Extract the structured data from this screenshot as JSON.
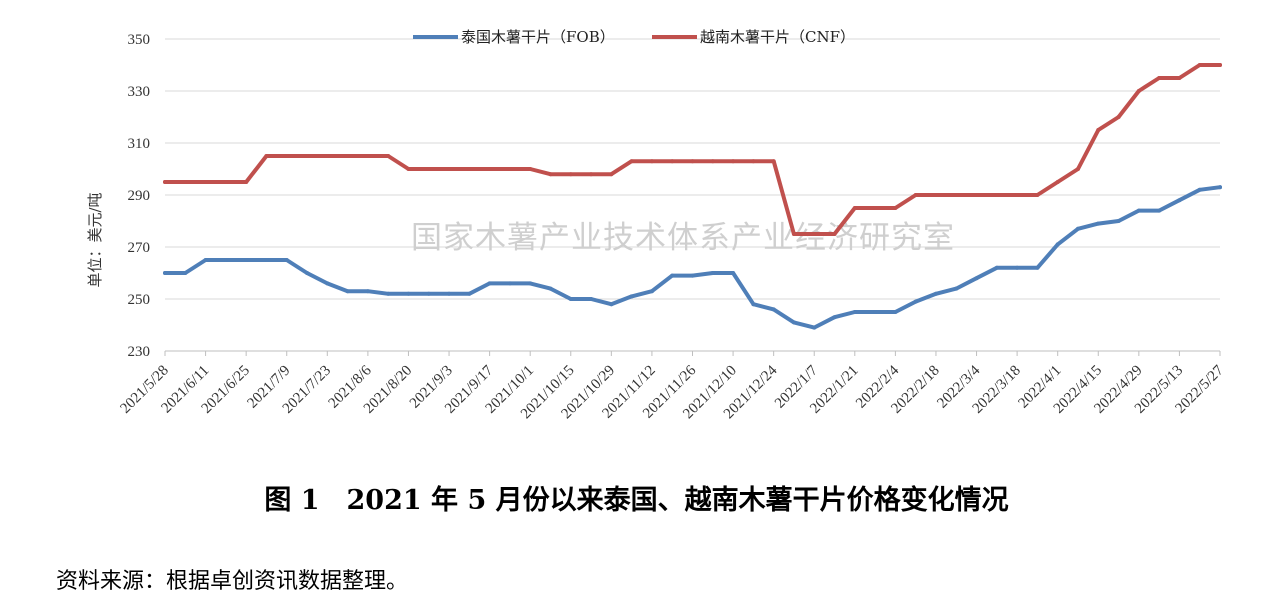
{
  "chart_data": {
    "type": "line",
    "ylabel": "单位：美元/吨",
    "ylim": [
      230,
      350
    ],
    "yticks": [
      230,
      250,
      270,
      290,
      310,
      330,
      350
    ],
    "grid": "horizontal",
    "legend_position": "top",
    "x": [
      "2021/5/28",
      "2021/6/4",
      "2021/6/11",
      "2021/6/18",
      "2021/6/25",
      "2021/7/2",
      "2021/7/9",
      "2021/7/16",
      "2021/7/23",
      "2021/7/30",
      "2021/8/6",
      "2021/8/13",
      "2021/8/20",
      "2021/8/27",
      "2021/9/3",
      "2021/9/10",
      "2021/9/17",
      "2021/9/24",
      "2021/10/1",
      "2021/10/8",
      "2021/10/15",
      "2021/10/22",
      "2021/10/29",
      "2021/11/5",
      "2021/11/12",
      "2021/11/19",
      "2021/11/26",
      "2021/12/3",
      "2021/12/10",
      "2021/12/17",
      "2021/12/24",
      "2021/12/31",
      "2022/1/7",
      "2022/1/14",
      "2022/1/21",
      "2022/1/28",
      "2022/2/4",
      "2022/2/11",
      "2022/2/18",
      "2022/2/25",
      "2022/3/4",
      "2022/3/11",
      "2022/3/18",
      "2022/3/25",
      "2022/4/1",
      "2022/4/8",
      "2022/4/15",
      "2022/4/22",
      "2022/4/29",
      "2022/5/6",
      "2022/5/13",
      "2022/5/20",
      "2022/5/27"
    ],
    "tick_labels": [
      "2021/5/28",
      "2021/6/11",
      "2021/6/25",
      "2021/7/9",
      "2021/7/23",
      "2021/8/6",
      "2021/8/20",
      "2021/9/3",
      "2021/9/17",
      "2021/10/1",
      "2021/10/15",
      "2021/10/29",
      "2021/11/12",
      "2021/11/26",
      "2021/12/10",
      "2021/12/24",
      "2022/1/7",
      "2022/1/21",
      "2022/2/4",
      "2022/2/18",
      "2022/3/4",
      "2022/3/18",
      "2022/4/1",
      "2022/4/15",
      "2022/4/29",
      "2022/5/13",
      "2022/5/27"
    ],
    "series": [
      {
        "name": "泰国木薯干片（FOB）",
        "color": "#4f7fb8",
        "values": [
          260,
          260,
          265,
          265,
          265,
          265,
          265,
          260,
          256,
          253,
          253,
          252,
          252,
          252,
          252,
          252,
          256,
          256,
          256,
          254,
          250,
          250,
          248,
          251,
          253,
          259,
          259,
          260,
          260,
          248,
          246,
          241,
          239,
          243,
          245,
          245,
          245,
          249,
          252,
          254,
          258,
          262,
          262,
          262,
          271,
          277,
          279,
          280,
          284,
          284,
          288,
          292,
          293
        ]
      },
      {
        "name": "越南木薯干片（CNF）",
        "color": "#c0504d",
        "values": [
          295,
          295,
          295,
          295,
          295,
          305,
          305,
          305,
          305,
          305,
          305,
          305,
          300,
          300,
          300,
          300,
          300,
          300,
          300,
          298,
          298,
          298,
          298,
          303,
          303,
          303,
          303,
          303,
          303,
          303,
          303,
          275,
          275,
          275,
          285,
          285,
          285,
          290,
          290,
          290,
          290,
          290,
          290,
          290,
          295,
          300,
          315,
          320,
          330,
          335,
          335,
          340,
          340
        ]
      }
    ]
  },
  "watermark": "国家木薯产业技术体系产业经济研究室",
  "caption": "图 1　2021 年 5 月份以来泰国、越南木薯干片价格变化情况",
  "source": "资料来源：根据卓创资讯数据整理。"
}
